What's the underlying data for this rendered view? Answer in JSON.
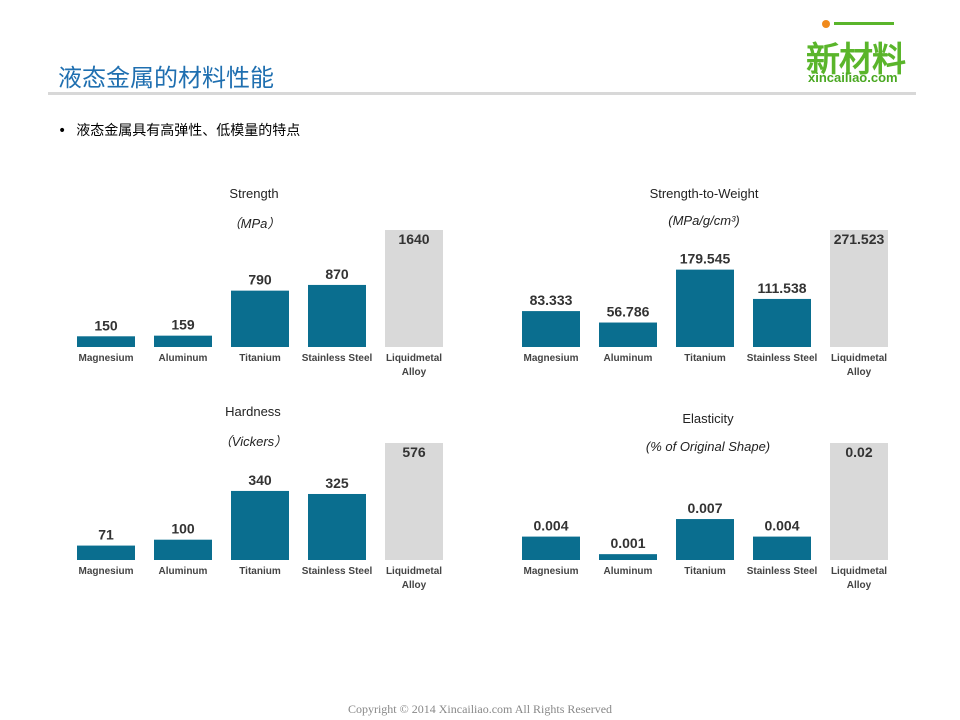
{
  "header": {
    "title": "液态金属的材料性能",
    "logo_main": "新材料",
    "logo_sub": "xincailiao.com"
  },
  "bullet": "液态金属具有高弹性、低模量的特点",
  "footer": "Copyright © 2014   Xincailiao.com    All Rights Reserved",
  "colors": {
    "bar": "#0a6e8f",
    "highlight_bar": "#d9d9d9",
    "title": "#1f6fb0"
  },
  "chart_data": [
    {
      "type": "bar",
      "title": "Strength",
      "unit": "（MPa）",
      "categories": [
        "Magnesium",
        "Aluminum",
        "Titanium",
        "Stainless Steel",
        "Liquidmetal Alloy"
      ],
      "values": [
        150,
        159,
        790,
        870,
        1640
      ],
      "labels": [
        "150",
        "159",
        "790",
        "870",
        "1640"
      ],
      "ylim": [
        0,
        1640
      ]
    },
    {
      "type": "bar",
      "title": "Strength-to-Weight",
      "unit": "(MPa/g/cm³)",
      "categories": [
        "Magnesium",
        "Aluminum",
        "Titanium",
        "Stainless Steel",
        "Liquidmetal Alloy"
      ],
      "values": [
        83.333,
        56.786,
        179.545,
        111.538,
        271.523
      ],
      "labels": [
        "83.333",
        "56.786",
        "179.545",
        "111.538",
        "271.523"
      ],
      "ylim": [
        0,
        271.523
      ]
    },
    {
      "type": "bar",
      "title": "Hardness",
      "unit": "（Vickers）",
      "categories": [
        "Magnesium",
        "Aluminum",
        "Titanium",
        "Stainless Steel",
        "Liquidmetal Alloy"
      ],
      "values": [
        71,
        100,
        340,
        325,
        576
      ],
      "labels": [
        "71",
        "100",
        "340",
        "325",
        "576"
      ],
      "ylim": [
        0,
        576
      ]
    },
    {
      "type": "bar",
      "title": "Elasticity",
      "unit": "(% of Original Shape)",
      "categories": [
        "Magnesium",
        "Aluminum",
        "Titanium",
        "Stainless Steel",
        "Liquidmetal Alloy"
      ],
      "values": [
        0.004,
        0.001,
        0.007,
        0.004,
        0.02
      ],
      "labels": [
        "0.004",
        "0.001",
        "0.007",
        "0.004",
        "0.02"
      ],
      "ylim": [
        0,
        0.02
      ]
    }
  ]
}
